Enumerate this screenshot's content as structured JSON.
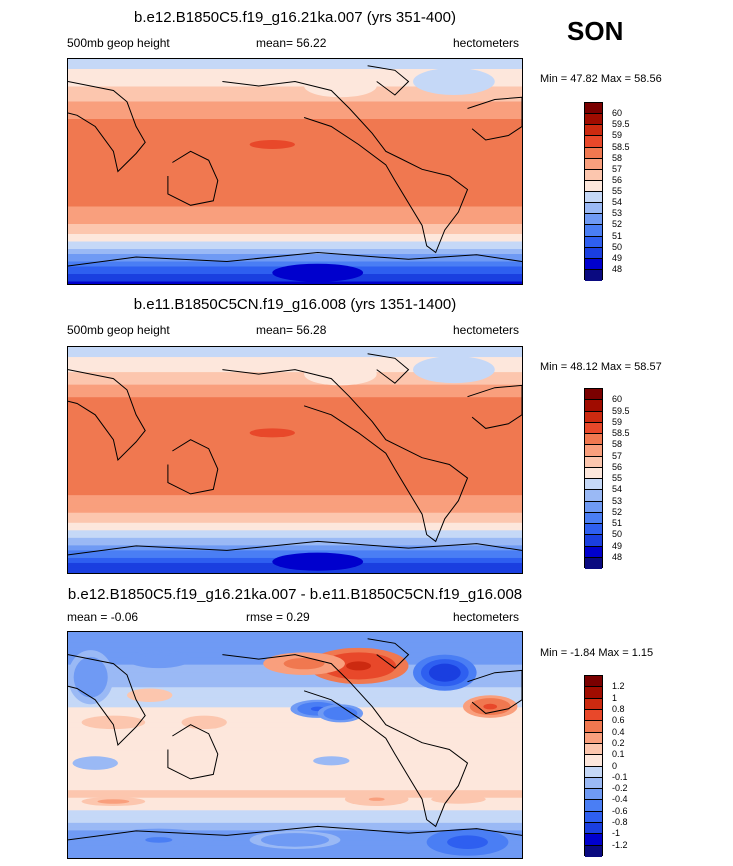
{
  "season": "SON",
  "chart_data": [
    {
      "type": "heatmap",
      "title": "b.e12.B1850C5.f19_g16.21ka.007 (yrs 351-400)",
      "left_label": "500mb geop height",
      "mean_label": "mean=  56.22",
      "mean": 56.22,
      "units": "hectometers",
      "minmax_label": "Min = 47.82 Max = 58.56",
      "min": 47.82,
      "max": 58.56,
      "levels": [
        "48",
        "49",
        "50",
        "51",
        "52",
        "53",
        "54",
        "55",
        "56",
        "57",
        "58",
        "58.5",
        "59",
        "59.5",
        "60"
      ],
      "colors": [
        "#0a0a80",
        "#0000cd",
        "#1a3fe0",
        "#2e5ff0",
        "#4a7ef4",
        "#6f9af4",
        "#9ab9f5",
        "#c5d8f7",
        "#fde7dc",
        "#fcc6ae",
        "#f99f7d",
        "#f07850",
        "#e8482a",
        "#cc2a10",
        "#a00c00",
        "#7a0000"
      ],
      "profile": [
        [
          0.0,
          54.4
        ],
        [
          0.04,
          55.0
        ],
        [
          0.08,
          55.4
        ],
        [
          0.13,
          56.1
        ],
        [
          0.18,
          56.9
        ],
        [
          0.23,
          57.7
        ],
        [
          0.3,
          58.2
        ],
        [
          0.38,
          58.3
        ],
        [
          0.46,
          58.4
        ],
        [
          0.54,
          58.4
        ],
        [
          0.62,
          58.2
        ],
        [
          0.68,
          57.9
        ],
        [
          0.72,
          57.3
        ],
        [
          0.76,
          56.4
        ],
        [
          0.8,
          55.3
        ],
        [
          0.84,
          54.0
        ],
        [
          0.88,
          52.7
        ],
        [
          0.91,
          51.5
        ],
        [
          0.94,
          50.5
        ],
        [
          0.97,
          49.5
        ],
        [
          1.0,
          48.8
        ]
      ]
    },
    {
      "type": "heatmap",
      "title": "b.e11.B1850C5CN.f19_g16.008 (yrs 1351-1400)",
      "left_label": "500mb geop height",
      "mean_label": "mean=  56.28",
      "mean": 56.28,
      "units": "hectometers",
      "minmax_label": "Min = 48.12 Max = 58.57",
      "min": 48.12,
      "max": 58.57,
      "levels": [
        "48",
        "49",
        "50",
        "51",
        "52",
        "53",
        "54",
        "55",
        "56",
        "57",
        "58",
        "58.5",
        "59",
        "59.5",
        "60"
      ],
      "colors": [
        "#0a0a80",
        "#0000cd",
        "#1a3fe0",
        "#2e5ff0",
        "#4a7ef4",
        "#6f9af4",
        "#9ab9f5",
        "#c5d8f7",
        "#fde7dc",
        "#fcc6ae",
        "#f99f7d",
        "#f07850",
        "#e8482a",
        "#cc2a10",
        "#a00c00",
        "#7a0000"
      ],
      "profile": [
        [
          0.0,
          54.3
        ],
        [
          0.04,
          54.9
        ],
        [
          0.08,
          55.5
        ],
        [
          0.13,
          56.3
        ],
        [
          0.18,
          57.2
        ],
        [
          0.23,
          58.1
        ],
        [
          0.3,
          58.2
        ],
        [
          0.38,
          58.3
        ],
        [
          0.46,
          58.4
        ],
        [
          0.54,
          58.4
        ],
        [
          0.62,
          58.2
        ],
        [
          0.68,
          57.9
        ],
        [
          0.72,
          57.3
        ],
        [
          0.76,
          56.5
        ],
        [
          0.8,
          55.4
        ],
        [
          0.84,
          54.1
        ],
        [
          0.88,
          52.8
        ],
        [
          0.91,
          51.7
        ],
        [
          0.94,
          50.6
        ],
        [
          0.97,
          49.6
        ],
        [
          1.0,
          48.9
        ]
      ]
    },
    {
      "type": "heatmap",
      "title": "b.e12.B1850C5.f19_g16.21ka.007 - b.e11.B1850C5CN.f19_g16.008",
      "left_label": "mean =  -0.06",
      "mean": -0.06,
      "rmse_label": "rmse =   0.29",
      "rmse": 0.29,
      "units": "hectometers",
      "minmax_label": "Min = -1.84 Max =  1.15",
      "min": -1.84,
      "max": 1.15,
      "levels": [
        "-1.2",
        "-1",
        "-0.8",
        "-0.6",
        "-0.4",
        "-0.2",
        "-0.1",
        "0",
        "0.1",
        "0.2",
        "0.4",
        "0.6",
        "0.8",
        "1",
        "1.2"
      ],
      "colors": [
        "#0a0a80",
        "#0000cd",
        "#1a3fe0",
        "#2e5ff0",
        "#4a7ef4",
        "#6f9af4",
        "#9ab9f5",
        "#c5d8f7",
        "#fde7dc",
        "#fcc6ae",
        "#f99f7d",
        "#f07850",
        "#e8482a",
        "#cc2a10",
        "#a00c00",
        "#7a0000"
      ],
      "profile": [
        [
          0.0,
          -0.25
        ],
        [
          0.06,
          -0.3
        ],
        [
          0.12,
          -0.22
        ],
        [
          0.2,
          -0.15
        ],
        [
          0.28,
          -0.05
        ],
        [
          0.36,
          0.03
        ],
        [
          0.44,
          0.05
        ],
        [
          0.52,
          0.05
        ],
        [
          0.6,
          0.04
        ],
        [
          0.66,
          0.06
        ],
        [
          0.72,
          0.12
        ],
        [
          0.78,
          0.02
        ],
        [
          0.84,
          -0.1
        ],
        [
          0.9,
          -0.25
        ],
        [
          0.95,
          -0.3
        ],
        [
          1.0,
          -0.2
        ]
      ],
      "anomalies": [
        {
          "cx": 0.64,
          "cy": 0.15,
          "rx": 0.11,
          "ry": 0.08,
          "v": 0.9
        },
        {
          "cx": 0.52,
          "cy": 0.14,
          "rx": 0.09,
          "ry": 0.05,
          "v": 0.5
        },
        {
          "cx": 0.83,
          "cy": 0.18,
          "rx": 0.07,
          "ry": 0.08,
          "v": -1.0
        },
        {
          "cx": 0.93,
          "cy": 0.33,
          "rx": 0.06,
          "ry": 0.05,
          "v": 0.7
        },
        {
          "cx": 0.55,
          "cy": 0.34,
          "rx": 0.06,
          "ry": 0.04,
          "v": -0.7
        },
        {
          "cx": 0.6,
          "cy": 0.36,
          "rx": 0.05,
          "ry": 0.04,
          "v": -0.6
        },
        {
          "cx": 0.2,
          "cy": 0.12,
          "rx": 0.07,
          "ry": 0.04,
          "v": -0.4
        },
        {
          "cx": 0.05,
          "cy": 0.2,
          "rx": 0.05,
          "ry": 0.12,
          "v": -0.3
        },
        {
          "cx": 0.18,
          "cy": 0.28,
          "rx": 0.05,
          "ry": 0.03,
          "v": 0.15
        },
        {
          "cx": 0.1,
          "cy": 0.4,
          "rx": 0.07,
          "ry": 0.03,
          "v": 0.12
        },
        {
          "cx": 0.3,
          "cy": 0.4,
          "rx": 0.05,
          "ry": 0.03,
          "v": 0.12
        },
        {
          "cx": 0.06,
          "cy": 0.58,
          "rx": 0.05,
          "ry": 0.03,
          "v": -0.15
        },
        {
          "cx": 0.58,
          "cy": 0.57,
          "rx": 0.04,
          "ry": 0.02,
          "v": -0.15
        },
        {
          "cx": 0.1,
          "cy": 0.75,
          "rx": 0.07,
          "ry": 0.02,
          "v": 0.25
        },
        {
          "cx": 0.68,
          "cy": 0.74,
          "rx": 0.07,
          "ry": 0.03,
          "v": 0.2
        },
        {
          "cx": 0.86,
          "cy": 0.74,
          "rx": 0.06,
          "ry": 0.02,
          "v": 0.15
        },
        {
          "cx": 0.88,
          "cy": 0.93,
          "rx": 0.09,
          "ry": 0.06,
          "v": -0.8
        },
        {
          "cx": 0.2,
          "cy": 0.92,
          "rx": 0.12,
          "ry": 0.05,
          "v": -0.45
        },
        {
          "cx": 0.5,
          "cy": 0.92,
          "rx": 0.1,
          "ry": 0.04,
          "v": -0.3
        }
      ]
    }
  ]
}
